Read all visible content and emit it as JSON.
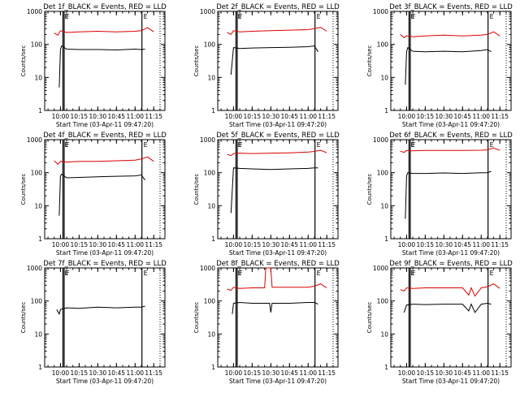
{
  "figure": {
    "background": "#ffffff",
    "colors": {
      "events": "#000000",
      "lld": "#dd0000",
      "axis": "#000000"
    }
  },
  "chart_data": [
    {
      "type": "line",
      "title": "Det 1f_BLACK = Events, RED = LLD",
      "xlabel": "Start Time (03-Apr-11 09:47:20)",
      "ylabel": "Counts/sec",
      "x_ticks": [
        "10:00",
        "10:15",
        "10:30",
        "10:45",
        "11:00",
        "11:15"
      ],
      "y_ticks": [
        "1",
        "10",
        "100",
        "1000"
      ],
      "ylim": [
        1,
        1000
      ],
      "y_scale": "log",
      "markers": [
        "E",
        "F",
        "E"
      ],
      "grid": false,
      "series": [
        {
          "color": "#000000",
          "x": [
            "09:59",
            "10:00",
            "10:01",
            "10:05",
            "10:15",
            "10:30",
            "10:45",
            "11:00",
            "11:05",
            "11:08"
          ],
          "values": [
            5,
            70,
            90,
            72,
            70,
            70,
            68,
            72,
            70,
            72
          ]
        },
        {
          "color": "#dd0000",
          "x": [
            "09:55",
            "09:58",
            "10:00",
            "10:05",
            "10:15",
            "10:30",
            "10:45",
            "11:00",
            "11:05",
            "11:10",
            "11:15"
          ],
          "values": [
            220,
            190,
            260,
            230,
            240,
            250,
            240,
            250,
            260,
            320,
            240
          ]
        }
      ]
    },
    {
      "type": "line",
      "title": "Det 2f_BLACK = Events, RED = LLD",
      "xlabel": "Start Time (03-Apr-11 09:47:20)",
      "ylabel": "Counts/sec",
      "x_ticks": [
        "10:00",
        "10:15",
        "10:30",
        "10:45",
        "11:00",
        "11:15"
      ],
      "y_ticks": [
        "1",
        "10",
        "100",
        "1000"
      ],
      "ylim": [
        1,
        1000
      ],
      "y_scale": "log",
      "markers": [
        "E",
        "F",
        "E"
      ],
      "grid": false,
      "series": [
        {
          "color": "#000000",
          "x": [
            "09:58",
            "10:00",
            "10:05",
            "10:15",
            "10:30",
            "10:45",
            "11:00",
            "11:05",
            "11:08"
          ],
          "values": [
            12,
            80,
            75,
            78,
            80,
            82,
            85,
            90,
            60
          ]
        },
        {
          "color": "#dd0000",
          "x": [
            "09:55",
            "09:58",
            "10:00",
            "10:05",
            "10:15",
            "10:30",
            "10:45",
            "11:00",
            "11:05",
            "11:10",
            "11:15"
          ],
          "values": [
            230,
            200,
            260,
            240,
            250,
            260,
            270,
            280,
            300,
            330,
            250
          ]
        }
      ]
    },
    {
      "type": "line",
      "title": "Det 3f_BLACK = Events, RED = LLD",
      "xlabel": "Start Time (03-Apr-11 09:47:20)",
      "ylabel": "Counts/sec",
      "x_ticks": [
        "10:00",
        "10:15",
        "10:30",
        "10:45",
        "11:00",
        "11:15"
      ],
      "y_ticks": [
        "1",
        "10",
        "100",
        "1000"
      ],
      "ylim": [
        1,
        1000
      ],
      "y_scale": "log",
      "markers": [
        "E",
        "F",
        "E"
      ],
      "grid": false,
      "series": [
        {
          "color": "#000000",
          "x": [
            "09:59",
            "10:00",
            "10:01",
            "10:05",
            "10:15",
            "10:30",
            "10:45",
            "11:00",
            "11:05",
            "11:08"
          ],
          "values": [
            6,
            60,
            80,
            62,
            60,
            62,
            60,
            65,
            70,
            60
          ]
        },
        {
          "color": "#dd0000",
          "x": [
            "09:55",
            "09:58",
            "10:00",
            "10:05",
            "10:15",
            "10:30",
            "10:45",
            "11:00",
            "11:05",
            "11:10",
            "11:15"
          ],
          "values": [
            200,
            160,
            180,
            170,
            180,
            190,
            180,
            190,
            200,
            240,
            180
          ]
        }
      ]
    },
    {
      "type": "line",
      "title": "Det 4f_BLACK = Events, RED = LLD",
      "xlabel": "Start Time (03-Apr-11 09:47:20)",
      "ylabel": "Counts/sec",
      "x_ticks": [
        "10:00",
        "10:15",
        "10:30",
        "10:45",
        "11:00",
        "11:15"
      ],
      "y_ticks": [
        "1",
        "10",
        "100",
        "1000"
      ],
      "ylim": [
        1,
        1000
      ],
      "y_scale": "log",
      "markers": [
        "E",
        "F",
        "E"
      ],
      "grid": false,
      "series": [
        {
          "color": "#000000",
          "x": [
            "09:59",
            "10:00",
            "10:01",
            "10:05",
            "10:15",
            "10:30",
            "10:45",
            "11:00",
            "11:05",
            "11:08"
          ],
          "values": [
            5,
            80,
            90,
            70,
            72,
            75,
            78,
            80,
            85,
            60
          ]
        },
        {
          "color": "#dd0000",
          "x": [
            "09:55",
            "09:58",
            "10:00",
            "10:05",
            "10:15",
            "10:30",
            "10:45",
            "11:00",
            "11:05",
            "11:10",
            "11:15"
          ],
          "values": [
            230,
            180,
            220,
            210,
            220,
            220,
            230,
            240,
            260,
            300,
            220
          ]
        }
      ]
    },
    {
      "type": "line",
      "title": "Det 5f_BLACK = Events, RED = LLD",
      "xlabel": "Start Time (03-Apr-11 09:47:20)",
      "ylabel": "Counts/sec",
      "x_ticks": [
        "10:00",
        "10:15",
        "10:30",
        "10:45",
        "11:00",
        "11:15"
      ],
      "y_ticks": [
        "1",
        "10",
        "100",
        "1000"
      ],
      "ylim": [
        1,
        1000
      ],
      "y_scale": "log",
      "markers": [
        "E",
        "F",
        "E"
      ],
      "grid": false,
      "series": [
        {
          "color": "#000000",
          "x": [
            "09:58",
            "10:00",
            "10:05",
            "10:15",
            "10:30",
            "10:45",
            "11:00",
            "11:05",
            "11:08"
          ],
          "values": [
            6,
            140,
            135,
            130,
            125,
            130,
            135,
            140,
            140
          ]
        },
        {
          "color": "#dd0000",
          "x": [
            "09:55",
            "09:58",
            "10:00",
            "10:05",
            "10:15",
            "10:30",
            "10:45",
            "11:00",
            "11:05",
            "11:10",
            "11:15"
          ],
          "values": [
            360,
            330,
            380,
            390,
            380,
            390,
            400,
            420,
            440,
            480,
            400
          ]
        }
      ]
    },
    {
      "type": "line",
      "title": "Det 6f_BLACK = Events, RED = LLD",
      "xlabel": "Start Time (03-Apr-11 09:47:20)",
      "ylabel": "Counts/sec",
      "x_ticks": [
        "10:00",
        "10:15",
        "10:30",
        "10:45",
        "11:00",
        "11:15"
      ],
      "y_ticks": [
        "1",
        "10",
        "100",
        "1000"
      ],
      "ylim": [
        1,
        1000
      ],
      "y_scale": "log",
      "markers": [
        "E",
        "F",
        "E"
      ],
      "grid": false,
      "series": [
        {
          "color": "#000000",
          "x": [
            "09:59",
            "10:00",
            "10:01",
            "10:05",
            "10:15",
            "10:30",
            "10:45",
            "11:00",
            "11:05",
            "11:08"
          ],
          "values": [
            4,
            80,
            100,
            95,
            95,
            98,
            95,
            100,
            100,
            110
          ]
        },
        {
          "color": "#dd0000",
          "x": [
            "09:55",
            "09:58",
            "10:00",
            "10:05",
            "10:15",
            "10:30",
            "10:45",
            "11:00",
            "11:05",
            "11:10",
            "11:15"
          ],
          "values": [
            450,
            410,
            470,
            460,
            470,
            470,
            470,
            480,
            490,
            560,
            470
          ]
        }
      ]
    },
    {
      "type": "line",
      "title": "Det 7f_BLACK = Events, RED = LLD",
      "xlabel": "Start Time (03-Apr-11 09:47:20)",
      "ylabel": "Counts/sec",
      "x_ticks": [
        "10:00",
        "10:15",
        "10:30",
        "10:45",
        "11:00",
        "11:15"
      ],
      "y_ticks": [
        "1",
        "10",
        "100",
        "1000"
      ],
      "ylim": [
        1,
        1000
      ],
      "y_scale": "log",
      "markers": [
        "E",
        "F",
        "E"
      ],
      "grid": false,
      "series": [
        {
          "color": "#000000",
          "x": [
            "09:57",
            "09:59",
            "10:00",
            "10:05",
            "10:15",
            "10:30",
            "10:45",
            "11:00",
            "11:05",
            "11:08"
          ],
          "values": [
            55,
            40,
            55,
            62,
            60,
            65,
            62,
            65,
            65,
            70
          ]
        }
      ]
    },
    {
      "type": "line",
      "title": "Det 8f_BLACK = Events, RED = LLD",
      "xlabel": "Start Time (03-Apr-11 09:47:20)",
      "ylabel": "Counts/sec",
      "x_ticks": [
        "10:00",
        "10:15",
        "10:30",
        "10:45",
        "11:00",
        "11:15"
      ],
      "y_ticks": [
        "1",
        "10",
        "100",
        "1000"
      ],
      "ylim": [
        1,
        1000
      ],
      "y_scale": "log",
      "markers": [
        "E",
        "F",
        "E"
      ],
      "grid": false,
      "series": [
        {
          "color": "#000000",
          "x": [
            "09:59",
            "10:00",
            "10:05",
            "10:15",
            "10:29",
            "10:30",
            "10:31",
            "10:45",
            "11:00",
            "11:05",
            "11:08"
          ],
          "values": [
            40,
            85,
            90,
            85,
            85,
            45,
            85,
            85,
            90,
            90,
            80
          ]
        },
        {
          "color": "#dd0000",
          "x": [
            "09:55",
            "09:58",
            "10:00",
            "10:05",
            "10:15",
            "10:25",
            "10:26",
            "10:30",
            "10:31",
            "10:45",
            "11:00",
            "11:05",
            "11:10",
            "11:15"
          ],
          "values": [
            230,
            210,
            260,
            240,
            250,
            250,
            1000,
            1000,
            260,
            260,
            260,
            280,
            330,
            250
          ]
        }
      ]
    },
    {
      "type": "line",
      "title": "Det 9f_BLACK = Events, RED = LLD",
      "xlabel": "Start Time (03-Apr-11 09:47:20)",
      "ylabel": "Counts/sec",
      "x_ticks": [
        "10:00",
        "10:15",
        "10:30",
        "10:45",
        "11:00",
        "11:15"
      ],
      "y_ticks": [
        "1",
        "10",
        "100",
        "1000"
      ],
      "ylim": [
        1,
        1000
      ],
      "y_scale": "log",
      "markers": [
        "E",
        "F",
        "E"
      ],
      "grid": false,
      "series": [
        {
          "color": "#000000",
          "x": [
            "09:58",
            "10:00",
            "10:05",
            "10:15",
            "10:30",
            "10:45",
            "10:50",
            "10:52",
            "10:55",
            "11:00",
            "11:05",
            "11:08"
          ],
          "values": [
            45,
            75,
            80,
            78,
            80,
            80,
            50,
            80,
            45,
            80,
            85,
            80
          ]
        },
        {
          "color": "#dd0000",
          "x": [
            "09:55",
            "09:58",
            "10:00",
            "10:05",
            "10:15",
            "10:30",
            "10:45",
            "10:50",
            "10:52",
            "10:55",
            "11:00",
            "11:05",
            "11:10",
            "11:15"
          ],
          "values": [
            220,
            200,
            250,
            240,
            250,
            250,
            250,
            150,
            250,
            140,
            250,
            270,
            330,
            240
          ]
        }
      ]
    }
  ]
}
